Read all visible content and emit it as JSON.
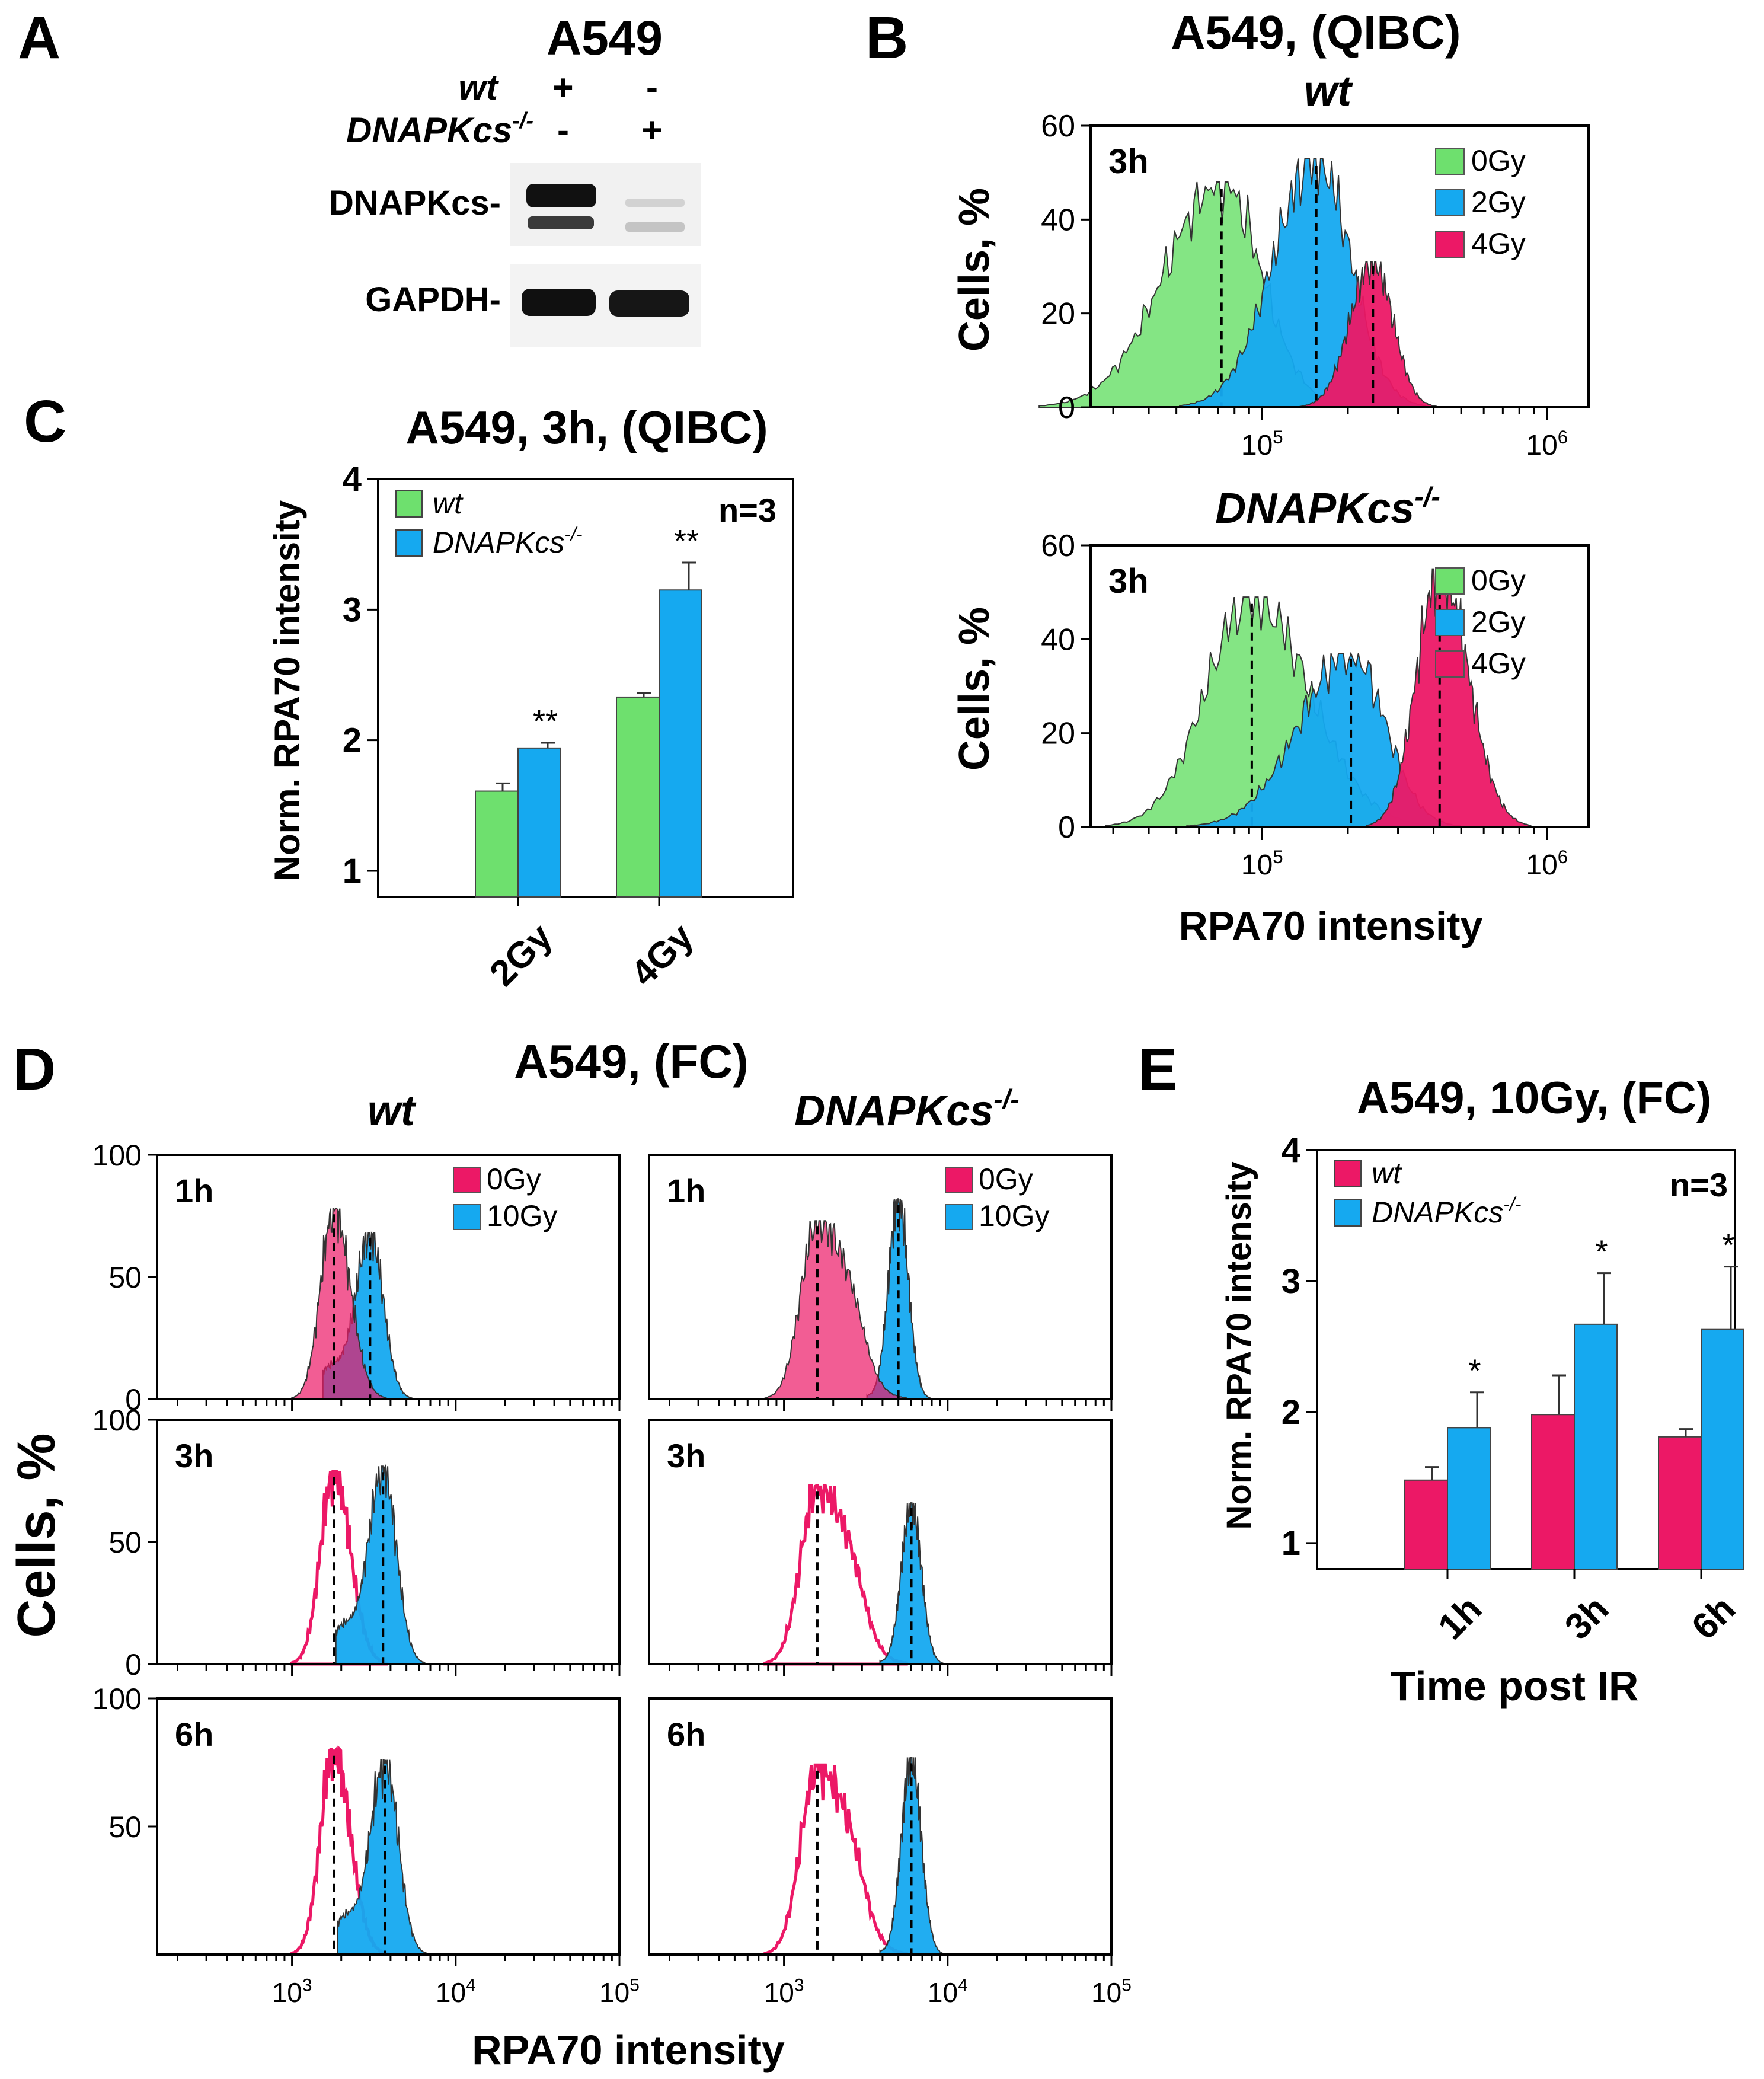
{
  "colors": {
    "green": "#6ee06e",
    "blue": "#15a9f0",
    "red": "#ec1866",
    "text": "#000000"
  },
  "panelA": {
    "letter": "A",
    "title": "A549",
    "row_wt_label": "wt",
    "row_wt_values": [
      "+",
      "-"
    ],
    "row_ko_label": "DNAPKcs",
    "row_ko_sup": "-/-",
    "row_ko_values": [
      "-",
      "+"
    ],
    "blot1_label": "DNAPKcs-",
    "blot2_label": "GAPDH-"
  },
  "panelB": {
    "letter": "B",
    "title": "A549, (QIBC)",
    "ylabel": "Cells, %",
    "xlabel": "RPA70 intensity",
    "subplots": [
      {
        "header": "wt",
        "header_sup": "",
        "time": "3h"
      },
      {
        "header": "DNAPKcs",
        "header_sup": "-/-",
        "time": "3h"
      }
    ],
    "legend": [
      "0Gy",
      "2Gy",
      "4Gy"
    ],
    "yticks": [
      "0",
      "20",
      "40",
      "60"
    ],
    "xticks": [
      {
        "base": "10",
        "exp": "5"
      },
      {
        "base": "10",
        "exp": "6"
      }
    ]
  },
  "panelC": {
    "letter": "C",
    "title": "A549, 3h, (QIBC)",
    "ylabel": "Norm. RPA70 intensity",
    "n_label": "n=3",
    "legend": [
      {
        "name": "wt",
        "sup": ""
      },
      {
        "name": "DNAPKcs",
        "sup": "-/-"
      }
    ],
    "yticks": [
      "1",
      "2",
      "3",
      "4"
    ],
    "categories": [
      "2Gy",
      "4Gy"
    ],
    "sig_labels": [
      "**",
      "**"
    ]
  },
  "panelD": {
    "letter": "D",
    "title": "A549, (FC)",
    "col_headers": [
      {
        "name": "wt",
        "sup": ""
      },
      {
        "name": "DNAPKcs",
        "sup": "-/-"
      }
    ],
    "ylabel": "Cells, %",
    "xlabel": "RPA70 intensity",
    "legend": [
      "0Gy",
      "10Gy"
    ],
    "times": [
      "1h",
      "3h",
      "6h"
    ],
    "yticks_rows": [
      [
        "0",
        "50",
        "100"
      ],
      [
        "0",
        "50",
        "100"
      ],
      [
        "50",
        "100"
      ]
    ],
    "xticks": [
      {
        "base": "10",
        "exp": "3"
      },
      {
        "base": "10",
        "exp": "4"
      },
      {
        "base": "10",
        "exp": "5"
      }
    ]
  },
  "panelE": {
    "letter": "E",
    "title": "A549, 10Gy, (FC)",
    "ylabel": "Norm. RPA70 intensity",
    "xlabel": "Time post IR",
    "n_label": "n=3",
    "legend": [
      {
        "name": "wt",
        "sup": ""
      },
      {
        "name": "DNAPKcs",
        "sup": "-/-"
      }
    ],
    "yticks": [
      "1",
      "2",
      "3",
      "4"
    ],
    "categories": [
      "1h",
      "3h",
      "6h"
    ],
    "sig_labels": [
      "*",
      "*",
      "*"
    ]
  },
  "chart_data": [
    {
      "id": "B-wt",
      "type": "area",
      "title": "",
      "xlabel": "",
      "ylabel": "Cells, %",
      "x_scale": "log",
      "xlim": [
        25000,
        1400000
      ],
      "ylim": [
        0,
        60
      ],
      "series": [
        {
          "name": "0Gy",
          "peak_x": 72000,
          "peak_y": 48,
          "median": 72000
        },
        {
          "name": "2Gy",
          "peak_x": 155000,
          "peak_y": 53,
          "median": 155000
        },
        {
          "name": "4Gy",
          "peak_x": 245000,
          "peak_y": 31,
          "median": 245000
        }
      ]
    },
    {
      "id": "B-DNAPKcs-/-",
      "type": "area",
      "title": "",
      "xlabel": "RPA70 intensity",
      "ylabel": "Cells, %",
      "x_scale": "log",
      "xlim": [
        25000,
        1400000
      ],
      "ylim": [
        0,
        60
      ],
      "series": [
        {
          "name": "0Gy",
          "peak_x": 92000,
          "peak_y": 49,
          "median": 92000
        },
        {
          "name": "2Gy",
          "peak_x": 205000,
          "peak_y": 37,
          "median": 205000
        },
        {
          "name": "4Gy",
          "peak_x": 420000,
          "peak_y": 55,
          "median": 420000
        }
      ]
    },
    {
      "id": "C",
      "type": "bar",
      "title": "A549, 3h, (QIBC)",
      "ylabel": "Norm. RPA70 intensity",
      "categories": [
        "2Gy",
        "4Gy"
      ],
      "ylim": [
        0.8,
        4
      ],
      "series": [
        {
          "name": "wt",
          "values": [
            1.61,
            2.33
          ],
          "errors": [
            0.06,
            0.03
          ]
        },
        {
          "name": "DNAPKcs-/-",
          "values": [
            1.94,
            3.15
          ],
          "errors": [
            0.04,
            0.21
          ]
        }
      ]
    },
    {
      "id": "D",
      "type": "area",
      "title": "A549, (FC)",
      "xlabel": "RPA70 intensity",
      "ylabel": "Cells, %",
      "x_scale": "log",
      "xlim": [
        150,
        100000
      ],
      "ylim": [
        0,
        100
      ],
      "panels": [
        {
          "genotype": "wt",
          "time": "1h",
          "series": [
            {
              "name": "0Gy",
              "peak_x": 1800,
              "peak_y": 78,
              "median": 1800
            },
            {
              "name": "10Gy",
              "peak_x": 3000,
              "peak_y": 68,
              "median": 3000
            }
          ]
        },
        {
          "genotype": "DNAPKcs-/-",
          "time": "1h",
          "series": [
            {
              "name": "0Gy",
              "peak_x": 1600,
              "peak_y": 73,
              "median": 1600
            },
            {
              "name": "10Gy",
              "peak_x": 5000,
              "peak_y": 82,
              "median": 5000
            }
          ]
        },
        {
          "genotype": "wt",
          "time": "3h",
          "series": [
            {
              "name": "0Gy",
              "peak_x": 1800,
              "peak_y": 79,
              "median": 1800
            },
            {
              "name": "10Gy",
              "peak_x": 3600,
              "peak_y": 81,
              "median": 3600
            }
          ]
        },
        {
          "genotype": "DNAPKcs-/-",
          "time": "3h",
          "series": [
            {
              "name": "0Gy",
              "peak_x": 1600,
              "peak_y": 73,
              "median": 1600
            },
            {
              "name": "10Gy",
              "peak_x": 6000,
              "peak_y": 66,
              "median": 6000
            }
          ]
        },
        {
          "genotype": "wt",
          "time": "6h",
          "series": [
            {
              "name": "0Gy",
              "peak_x": 1800,
              "peak_y": 80,
              "median": 1800
            },
            {
              "name": "10Gy",
              "peak_x": 3700,
              "peak_y": 76,
              "median": 3700
            }
          ]
        },
        {
          "genotype": "DNAPKcs-/-",
          "time": "6h",
          "series": [
            {
              "name": "0Gy",
              "peak_x": 1600,
              "peak_y": 74,
              "median": 1600
            },
            {
              "name": "10Gy",
              "peak_x": 6000,
              "peak_y": 77,
              "median": 6000
            }
          ]
        }
      ]
    },
    {
      "id": "E",
      "type": "bar",
      "title": "A549, 10Gy, (FC)",
      "xlabel": "Time post IR",
      "ylabel": "Norm. RPA70 intensity",
      "categories": [
        "1h",
        "3h",
        "6h"
      ],
      "ylim": [
        0.8,
        4
      ],
      "series": [
        {
          "name": "wt",
          "values": [
            1.48,
            1.98,
            1.81
          ],
          "errors": [
            0.1,
            0.3,
            0.06
          ]
        },
        {
          "name": "DNAPKcs-/-",
          "values": [
            1.88,
            2.67,
            2.63
          ],
          "errors": [
            0.27,
            0.39,
            0.48
          ]
        }
      ]
    }
  ]
}
